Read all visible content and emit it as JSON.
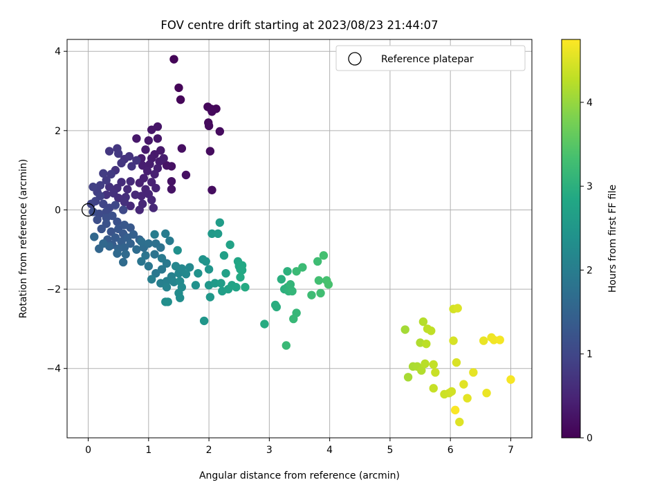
{
  "chart_data": {
    "type": "scatter",
    "title": "FOV centre drift starting at 2023/08/23 21:44:07",
    "xlabel": "Angular distance from reference (arcmin)",
    "ylabel": "Rotation from reference (arcmin)",
    "xlim": [
      -0.35,
      7.35
    ],
    "ylim": [
      -5.75,
      4.3
    ],
    "x_ticks": [
      0,
      1,
      2,
      3,
      4,
      5,
      6,
      7
    ],
    "y_ticks": [
      -4,
      -2,
      0,
      2,
      4
    ],
    "grid": true,
    "legend": {
      "position": "top-right",
      "entries": [
        "Reference platepar"
      ]
    },
    "reference_point": {
      "x": 0,
      "y": 0
    },
    "colorbar": {
      "label": "Hours from first FF file",
      "range": [
        0,
        4.75
      ],
      "ticks": [
        0,
        1,
        2,
        3,
        4
      ],
      "colormap": "viridis"
    },
    "points": [
      [
        1.42,
        3.8,
        0.05
      ],
      [
        1.5,
        3.08,
        0.06
      ],
      [
        1.53,
        2.78,
        0.07
      ],
      [
        1.98,
        2.6,
        0.08
      ],
      [
        2.03,
        2.55,
        0.1
      ],
      [
        2.12,
        2.55,
        0.09
      ],
      [
        2.05,
        2.48,
        0.11
      ],
      [
        1.99,
        2.2,
        0.12
      ],
      [
        2.0,
        2.12,
        0.13
      ],
      [
        2.18,
        1.98,
        0.14
      ],
      [
        2.02,
        1.48,
        0.15
      ],
      [
        2.05,
        0.5,
        0.16
      ],
      [
        1.55,
        1.55,
        0.18
      ],
      [
        1.62,
        0.88,
        0.2
      ],
      [
        1.38,
        1.1,
        0.22
      ],
      [
        1.38,
        0.72,
        0.23
      ],
      [
        1.38,
        0.52,
        0.24
      ],
      [
        1.3,
        1.12,
        0.25
      ],
      [
        1.15,
        2.1,
        0.27
      ],
      [
        1.05,
        2.02,
        0.28
      ],
      [
        1.15,
        1.8,
        0.29
      ],
      [
        1.0,
        1.75,
        0.3
      ],
      [
        0.8,
        1.8,
        0.31
      ],
      [
        1.2,
        1.5,
        0.32
      ],
      [
        1.1,
        1.4,
        0.33
      ],
      [
        0.95,
        1.52,
        0.34
      ],
      [
        1.05,
        1.3,
        0.35
      ],
      [
        0.88,
        1.3,
        0.36
      ],
      [
        1.18,
        1.22,
        0.37
      ],
      [
        1.25,
        1.3,
        0.38
      ],
      [
        1.02,
        1.15,
        0.39
      ],
      [
        0.9,
        1.12,
        0.4
      ],
      [
        1.15,
        1.05,
        0.41
      ],
      [
        0.98,
        0.98,
        0.42
      ],
      [
        1.1,
        0.9,
        0.43
      ],
      [
        0.92,
        0.8,
        0.44
      ],
      [
        0.85,
        0.68,
        0.45
      ],
      [
        1.05,
        0.7,
        0.46
      ],
      [
        1.12,
        0.55,
        0.47
      ],
      [
        0.95,
        0.52,
        0.48
      ],
      [
        1.0,
        0.4,
        0.49
      ],
      [
        0.88,
        0.35,
        0.5
      ],
      [
        1.05,
        0.25,
        0.51
      ],
      [
        0.9,
        0.15,
        0.52
      ],
      [
        1.08,
        0.05,
        0.53
      ],
      [
        0.85,
        0.0,
        0.54
      ],
      [
        0.7,
        0.1,
        0.55
      ],
      [
        0.78,
        0.38,
        0.56
      ],
      [
        0.65,
        0.52,
        0.57
      ],
      [
        0.7,
        0.72,
        0.58
      ],
      [
        0.55,
        0.7,
        0.6
      ],
      [
        0.48,
        0.55,
        0.62
      ],
      [
        0.62,
        0.32,
        0.63
      ],
      [
        0.5,
        0.3,
        0.64
      ],
      [
        0.6,
        0.2,
        0.65
      ],
      [
        0.42,
        0.42,
        0.66
      ],
      [
        0.35,
        0.58,
        0.67
      ],
      [
        0.3,
        0.38,
        0.68
      ],
      [
        0.45,
        1.0,
        0.69
      ],
      [
        0.6,
        1.28,
        0.7
      ],
      [
        0.68,
        1.35,
        0.71
      ],
      [
        0.8,
        1.25,
        0.72
      ],
      [
        0.72,
        1.1,
        0.73
      ],
      [
        0.55,
        1.18,
        0.74
      ],
      [
        0.48,
        1.55,
        0.75
      ],
      [
        0.35,
        1.48,
        0.76
      ],
      [
        0.5,
        1.42,
        0.78
      ],
      [
        0.38,
        0.9,
        0.8
      ],
      [
        0.3,
        0.75,
        0.82
      ],
      [
        0.25,
        0.92,
        0.84
      ],
      [
        0.2,
        0.62,
        0.86
      ],
      [
        0.15,
        0.45,
        0.88
      ],
      [
        0.08,
        0.58,
        0.9
      ],
      [
        0.2,
        0.35,
        0.92
      ],
      [
        0.12,
        0.22,
        0.94
      ],
      [
        0.05,
        0.15,
        0.96
      ],
      [
        0.25,
        0.15,
        0.98
      ],
      [
        0.35,
        0.05,
        1.0
      ],
      [
        0.45,
        0.12,
        1.02
      ],
      [
        0.58,
        0.0,
        1.04
      ],
      [
        0.3,
        -0.05,
        1.06
      ],
      [
        0.18,
        -0.1,
        1.08
      ],
      [
        0.08,
        -0.05,
        1.1
      ],
      [
        0.15,
        -0.25,
        1.12
      ],
      [
        0.3,
        -0.2,
        1.14
      ],
      [
        0.4,
        -0.15,
        1.16
      ],
      [
        0.48,
        -0.3,
        1.18
      ],
      [
        0.3,
        -0.35,
        1.2
      ],
      [
        0.22,
        -0.48,
        1.22
      ],
      [
        0.38,
        -0.55,
        1.24
      ],
      [
        0.5,
        -0.48,
        1.26
      ],
      [
        0.6,
        -0.38,
        1.28
      ],
      [
        0.7,
        -0.45,
        1.3
      ],
      [
        0.58,
        -0.6,
        1.32
      ],
      [
        0.45,
        -0.7,
        1.34
      ],
      [
        0.32,
        -0.75,
        1.36
      ],
      [
        0.4,
        -0.88,
        1.38
      ],
      [
        0.55,
        -0.8,
        1.4
      ],
      [
        0.65,
        -0.7,
        1.42
      ],
      [
        0.75,
        -0.62,
        1.44
      ],
      [
        0.85,
        -0.75,
        1.46
      ],
      [
        0.7,
        -0.85,
        1.48
      ],
      [
        0.6,
        -0.95,
        1.5
      ],
      [
        0.5,
        -0.98,
        1.52
      ],
      [
        0.35,
        -0.92,
        1.54
      ],
      [
        0.18,
        -0.98,
        1.56
      ],
      [
        0.1,
        -0.68,
        1.58
      ],
      [
        0.25,
        -0.85,
        1.6
      ],
      [
        0.48,
        -1.1,
        1.62
      ],
      [
        0.62,
        -1.12,
        1.64
      ],
      [
        0.58,
        -1.32,
        1.66
      ],
      [
        0.8,
        -1.0,
        1.68
      ],
      [
        0.92,
        -0.95,
        1.7
      ],
      [
        0.88,
        -0.8,
        1.72
      ],
      [
        1.0,
        -0.85,
        1.74
      ],
      [
        1.12,
        -0.85,
        1.76
      ],
      [
        1.2,
        -0.95,
        1.78
      ],
      [
        1.1,
        -1.12,
        1.8
      ],
      [
        0.95,
        -1.15,
        1.82
      ],
      [
        0.88,
        -1.3,
        1.84
      ],
      [
        1.0,
        -1.42,
        1.86
      ],
      [
        1.12,
        -1.6,
        1.88
      ],
      [
        1.22,
        -1.5,
        1.9
      ],
      [
        1.3,
        -1.35,
        1.92
      ],
      [
        1.22,
        -1.22,
        1.94
      ],
      [
        1.35,
        -0.78,
        1.96
      ],
      [
        1.28,
        -0.6,
        1.98
      ],
      [
        1.1,
        -0.62,
        2.0
      ],
      [
        1.05,
        -1.75,
        2.02
      ],
      [
        1.2,
        -1.85,
        2.04
      ],
      [
        1.3,
        -1.8,
        2.06
      ],
      [
        1.38,
        -1.68,
        2.08
      ],
      [
        1.3,
        -1.95,
        2.1
      ],
      [
        1.42,
        -1.82,
        2.12
      ],
      [
        1.5,
        -1.6,
        2.14
      ],
      [
        1.45,
        -1.42,
        2.16
      ],
      [
        1.55,
        -1.48,
        2.18
      ],
      [
        1.68,
        -1.45,
        2.2
      ],
      [
        1.62,
        -1.62,
        2.22
      ],
      [
        1.52,
        -1.8,
        2.24
      ],
      [
        1.55,
        -1.95,
        2.26
      ],
      [
        1.5,
        -2.1,
        2.28
      ],
      [
        1.52,
        -2.22,
        2.3
      ],
      [
        1.28,
        -2.32,
        2.32
      ],
      [
        1.32,
        -2.32,
        2.34
      ],
      [
        1.48,
        -1.02,
        2.36
      ],
      [
        1.78,
        -1.9,
        2.38
      ],
      [
        1.82,
        -1.6,
        2.4
      ],
      [
        1.9,
        -1.25,
        2.42
      ],
      [
        1.95,
        -1.3,
        2.44
      ],
      [
        2.0,
        -1.5,
        2.46
      ],
      [
        1.92,
        -2.8,
        2.48
      ],
      [
        2.0,
        -1.9,
        2.5
      ],
      [
        2.02,
        -2.2,
        2.52
      ],
      [
        2.05,
        -0.6,
        2.54
      ],
      [
        2.1,
        -1.85,
        2.56
      ],
      [
        2.15,
        -0.6,
        2.58
      ],
      [
        2.18,
        -0.32,
        2.6
      ],
      [
        2.2,
        -1.85,
        2.62
      ],
      [
        2.22,
        -2.05,
        2.64
      ],
      [
        2.25,
        -1.15,
        2.66
      ],
      [
        2.28,
        -1.6,
        2.68
      ],
      [
        2.32,
        -2.0,
        2.7
      ],
      [
        2.35,
        -0.88,
        2.72
      ],
      [
        2.38,
        -1.9,
        2.74
      ],
      [
        2.45,
        -1.95,
        2.76
      ],
      [
        2.48,
        -1.3,
        2.78
      ],
      [
        2.5,
        -1.42,
        2.8
      ],
      [
        2.52,
        -1.5,
        2.82
      ],
      [
        2.55,
        -1.4,
        2.84
      ],
      [
        2.55,
        -1.52,
        2.86
      ],
      [
        2.52,
        -1.7,
        2.88
      ],
      [
        2.6,
        -1.95,
        2.9
      ],
      [
        2.92,
        -2.88,
        2.92
      ],
      [
        3.1,
        -2.4,
        2.94
      ],
      [
        3.12,
        -2.45,
        2.96
      ],
      [
        3.2,
        -1.75,
        2.98
      ],
      [
        3.25,
        -2.0,
        3.0
      ],
      [
        3.3,
        -1.55,
        3.02
      ],
      [
        3.3,
        -1.95,
        3.04
      ],
      [
        3.32,
        -2.05,
        3.06
      ],
      [
        3.35,
        -2.0,
        3.08
      ],
      [
        3.35,
        -1.88,
        3.1
      ],
      [
        3.38,
        -2.05,
        3.12
      ],
      [
        3.45,
        -2.6,
        3.14
      ],
      [
        3.4,
        -2.75,
        3.16
      ],
      [
        3.28,
        -3.42,
        3.18
      ],
      [
        3.45,
        -1.55,
        3.2
      ],
      [
        3.55,
        -1.45,
        3.22
      ],
      [
        3.7,
        -2.15,
        3.24
      ],
      [
        3.8,
        -1.3,
        3.26
      ],
      [
        3.85,
        -2.1,
        3.28
      ],
      [
        3.82,
        -1.78,
        3.3
      ],
      [
        3.9,
        -1.15,
        3.32
      ],
      [
        3.95,
        -1.78,
        3.34
      ],
      [
        3.98,
        -1.88,
        3.36
      ],
      [
        5.25,
        -3.02,
        4.1
      ],
      [
        5.3,
        -4.22,
        4.12
      ],
      [
        5.38,
        -3.95,
        4.14
      ],
      [
        5.45,
        -3.95,
        4.16
      ],
      [
        5.5,
        -3.35,
        4.18
      ],
      [
        5.52,
        -4.05,
        4.2
      ],
      [
        5.55,
        -2.82,
        4.22
      ],
      [
        5.58,
        -3.88,
        4.24
      ],
      [
        5.6,
        -3.38,
        4.26
      ],
      [
        5.62,
        -3.0,
        4.28
      ],
      [
        5.68,
        -3.05,
        4.3
      ],
      [
        5.72,
        -3.9,
        4.32
      ],
      [
        5.72,
        -4.5,
        4.34
      ],
      [
        5.75,
        -4.1,
        4.36
      ],
      [
        5.9,
        -4.65,
        4.38
      ],
      [
        5.98,
        -4.62,
        4.4
      ],
      [
        6.02,
        -4.58,
        4.42
      ],
      [
        6.05,
        -2.5,
        4.44
      ],
      [
        6.05,
        -3.3,
        4.46
      ],
      [
        6.1,
        -3.85,
        4.48
      ],
      [
        6.12,
        -2.48,
        4.5
      ],
      [
        6.15,
        -5.35,
        4.52
      ],
      [
        6.22,
        -4.4,
        4.54
      ],
      [
        6.28,
        -4.75,
        4.56
      ],
      [
        6.38,
        -4.1,
        4.58
      ],
      [
        6.55,
        -3.3,
        4.6
      ],
      [
        6.6,
        -4.62,
        4.62
      ],
      [
        6.68,
        -3.22,
        4.64
      ],
      [
        6.72,
        -3.28,
        4.66
      ],
      [
        6.82,
        -3.28,
        4.68
      ],
      [
        7.0,
        -4.28,
        4.7
      ],
      [
        6.08,
        -5.05,
        4.72
      ]
    ]
  }
}
